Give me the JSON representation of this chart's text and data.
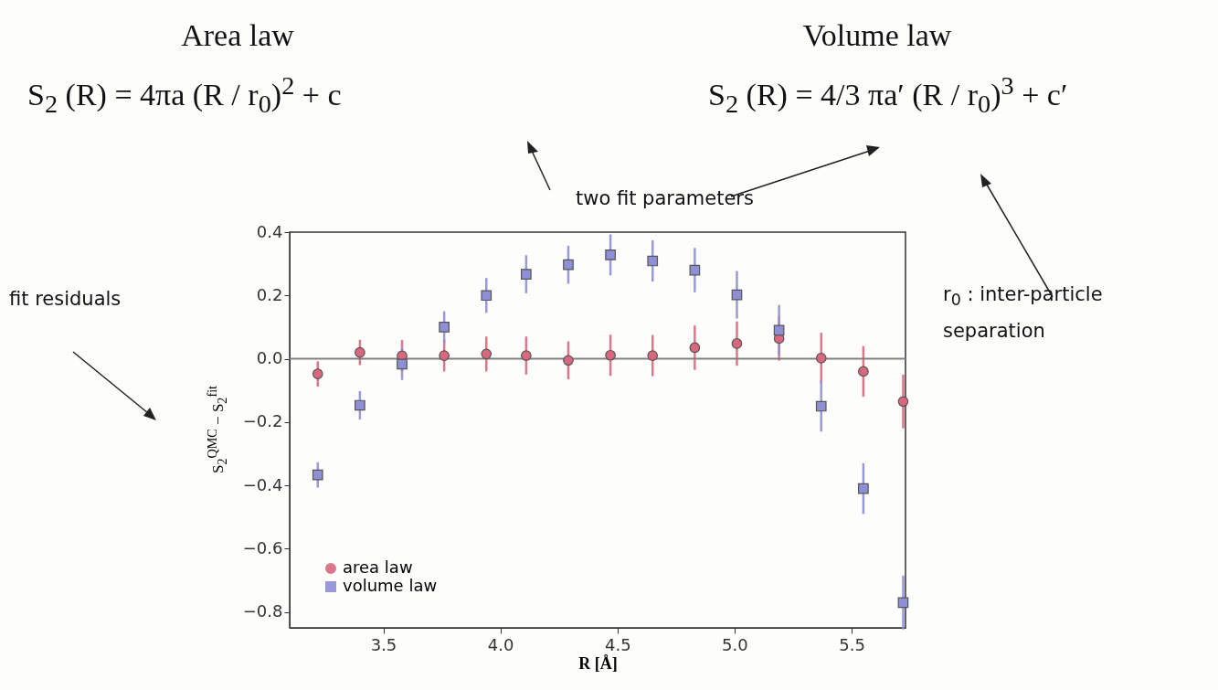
{
  "chart_data": {
    "type": "scatter",
    "xlabel": "R [Å]",
    "ylabel": "S$_{2}$$^{QMC}$ − S$_{2}$$^{fit}$",
    "x": [
      3.22,
      3.4,
      3.58,
      3.76,
      3.94,
      4.11,
      4.29,
      4.47,
      4.65,
      4.83,
      5.01,
      5.19,
      5.37,
      5.55,
      5.72
    ],
    "series": [
      {
        "name": "area law",
        "color": "#d9687f",
        "marker": "circle",
        "values": [
          -0.048,
          0.02,
          0.009,
          0.01,
          0.015,
          0.01,
          -0.005,
          0.011,
          0.01,
          0.035,
          0.048,
          0.064,
          0.002,
          -0.04,
          -0.135
        ],
        "errors": [
          0.04,
          0.04,
          0.05,
          0.05,
          0.055,
          0.06,
          0.06,
          0.065,
          0.065,
          0.07,
          0.07,
          0.07,
          0.08,
          0.08,
          0.085
        ]
      },
      {
        "name": "volume law",
        "color": "#8f8fd6",
        "marker": "square",
        "values": [
          -0.367,
          -0.147,
          -0.017,
          0.1,
          0.2,
          0.267,
          0.297,
          0.328,
          0.309,
          0.28,
          0.202,
          0.09,
          -0.15,
          -0.41,
          -0.77
        ],
        "errors": [
          0.04,
          0.045,
          0.05,
          0.05,
          0.055,
          0.06,
          0.06,
          0.065,
          0.065,
          0.07,
          0.075,
          0.08,
          0.08,
          0.08,
          0.085
        ]
      }
    ],
    "xlim": [
      3.1,
      5.73
    ],
    "ylim": [
      -0.85,
      0.4
    ],
    "xticks": [
      {
        "value": 3.5,
        "label": "3.5"
      },
      {
        "value": 4,
        "label": "4.0"
      },
      {
        "value": 4.5,
        "label": "4.5"
      },
      {
        "value": 5,
        "label": "5.0"
      },
      {
        "value": 5.5,
        "label": "5.5"
      }
    ],
    "yticks": [
      {
        "value": 0.4,
        "label": "0.4"
      },
      {
        "value": 0.2,
        "label": "0.2"
      },
      {
        "value": 0,
        "label": "0.0"
      },
      {
        "value": -0.2,
        "label": "−0.2"
      },
      {
        "value": -0.4,
        "label": "−0.4"
      },
      {
        "value": -0.6,
        "label": "−0.6"
      },
      {
        "value": -0.8,
        "label": "−0.8"
      }
    ],
    "ref_lines": [
      {
        "axis": "y",
        "value": 0,
        "color": "#808080"
      }
    ],
    "grid": false,
    "legend": "bottom left",
    "annotations": [
      "Area law",
      "S$_{2}$ (R) = 4πa (R / r$_{0}$)$^{2}$ + c",
      "Volume law",
      "S$_{2}$ (R) = 4/3 πa′ (R / r$_{0}$)$^{3}$ + c′",
      "two fit parameters",
      "fit residuals",
      "r$_{0}$ : inter-particle separation"
    ]
  }
}
